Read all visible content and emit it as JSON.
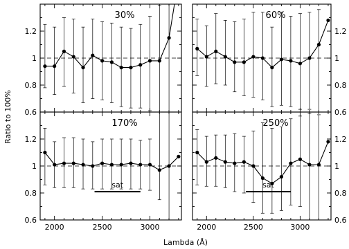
{
  "chart_data": {
    "type": "line",
    "xlabel": "Lambda (Å)",
    "ylabel": "Ratio to 100%",
    "xlim": [
      1850,
      3330
    ],
    "ylim": [
      0.6,
      1.4
    ],
    "x_ticks": [
      2000,
      2500,
      3000
    ],
    "y_ticks": [
      0.6,
      0.8,
      1,
      1.2
    ],
    "reference_line": 1.0,
    "grid": false,
    "layout": "2x2 panels, shared axes, y tick labels on left of left column and right of right column",
    "panels": [
      {
        "label": "30%",
        "x": [
          1900,
          2000,
          2100,
          2200,
          2300,
          2400,
          2500,
          2600,
          2700,
          2800,
          2900,
          3000,
          3100,
          3200,
          3280
        ],
        "y": [
          0.94,
          0.94,
          1.05,
          1.01,
          0.93,
          1.02,
          0.98,
          0.97,
          0.93,
          0.93,
          0.95,
          0.98,
          0.98,
          1.15,
          1.5
        ],
        "err_upper": [
          1.25,
          1.23,
          1.3,
          1.29,
          1.23,
          1.29,
          1.27,
          1.26,
          1.23,
          1.22,
          1.25,
          1.31,
          1.39,
          1.5,
          null
        ],
        "err_lower": [
          0.78,
          0.73,
          0.79,
          0.74,
          0.67,
          0.7,
          0.69,
          0.67,
          0.64,
          0.63,
          0.63,
          0.61,
          0.58,
          0.6,
          null
        ],
        "sat_range": null
      },
      {
        "label": "60%",
        "x": [
          1900,
          2000,
          2100,
          2200,
          2300,
          2400,
          2500,
          2600,
          2700,
          2800,
          2900,
          3000,
          3100,
          3200,
          3300
        ],
        "y": [
          1.07,
          1.01,
          1.05,
          1.01,
          0.97,
          0.97,
          1.01,
          1.0,
          0.93,
          0.99,
          0.98,
          0.96,
          1.0,
          1.1,
          1.28
        ],
        "err_upper": [
          1.29,
          1.24,
          1.33,
          1.28,
          1.27,
          1.29,
          1.34,
          1.34,
          1.23,
          1.34,
          1.31,
          1.33,
          1.34,
          1.36,
          null
        ],
        "err_lower": [
          0.87,
          0.79,
          0.81,
          0.8,
          0.75,
          0.72,
          0.71,
          0.69,
          0.64,
          0.65,
          0.64,
          0.62,
          0.62,
          0.6,
          null
        ],
        "sat_range": null
      },
      {
        "label": "170%",
        "x": [
          1900,
          2000,
          2100,
          2200,
          2300,
          2400,
          2500,
          2600,
          2700,
          2800,
          2900,
          3000,
          3100,
          3200,
          3300
        ],
        "y": [
          1.1,
          1.01,
          1.02,
          1.02,
          1.01,
          1.0,
          1.02,
          1.01,
          1.01,
          1.02,
          1.01,
          1.01,
          0.97,
          1.0,
          1.07
        ],
        "err_upper": [
          1.28,
          1.18,
          1.21,
          1.21,
          1.2,
          1.18,
          1.2,
          1.2,
          1.2,
          1.2,
          1.19,
          1.2,
          1.4,
          1.4,
          null
        ],
        "err_lower": [
          0.86,
          0.84,
          0.84,
          0.84,
          0.83,
          0.83,
          0.83,
          0.83,
          0.83,
          0.83,
          0.83,
          0.82,
          0.75,
          0.6,
          null
        ],
        "sat_range": [
          2420,
          2900
        ],
        "sat_label": "sat"
      },
      {
        "label": "250%",
        "x": [
          1900,
          2000,
          2100,
          2200,
          2300,
          2400,
          2500,
          2600,
          2700,
          2800,
          2900,
          3000,
          3100,
          3200,
          3300
        ],
        "y": [
          1.1,
          1.03,
          1.06,
          1.03,
          1.02,
          1.03,
          1.0,
          0.91,
          0.87,
          0.92,
          1.02,
          1.05,
          1.01,
          1.01,
          1.18
        ],
        "err_upper": [
          1.27,
          1.22,
          1.23,
          1.23,
          1.24,
          1.22,
          1.26,
          1.32,
          1.28,
          1.29,
          1.35,
          1.37,
          1.39,
          1.38,
          null
        ],
        "err_lower": [
          0.86,
          0.85,
          0.85,
          0.84,
          0.81,
          0.8,
          0.73,
          0.65,
          0.65,
          0.67,
          0.71,
          0.7,
          0.6,
          0.6,
          null
        ],
        "sat_range": [
          2420,
          2900
        ],
        "sat_label": "sat"
      }
    ]
  }
}
